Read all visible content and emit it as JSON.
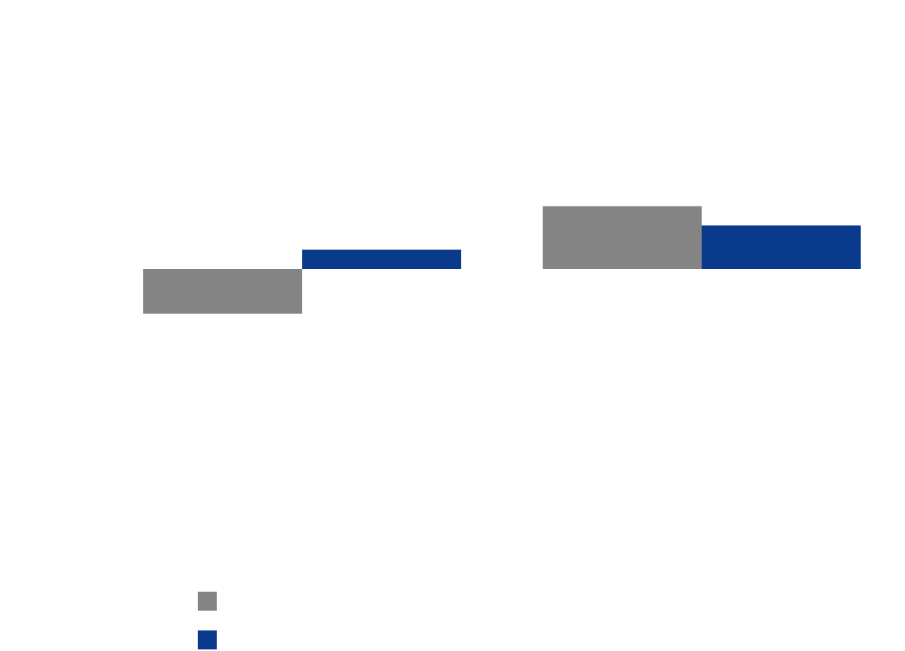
{
  "chart_data": {
    "type": "bar",
    "categories": [
      "",
      ""
    ],
    "series": [
      {
        "values": [
          -1.0,
          1.4
        ]
      },
      {
        "values": [
          0.43,
          0.97
        ]
      }
    ],
    "ylim": [
      -6.0,
      6.0
    ],
    "grid": false,
    "legend_position": "bottom-left",
    "colors": [
      "#848484",
      "#0a3a8c"
    ]
  }
}
